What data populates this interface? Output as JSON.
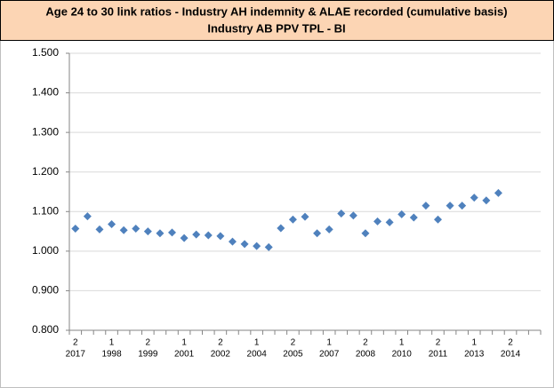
{
  "chart_data": {
    "type": "scatter",
    "title": "Age 24 to 30 link ratios - Industry AH indemnity & ALAE recorded (cumulative basis)",
    "subtitle": "Industry AB PPV TPL - BI",
    "categories": [
      [
        "2",
        "2017"
      ],
      null,
      null,
      [
        "1",
        "1998"
      ],
      null,
      null,
      [
        "2",
        "1999"
      ],
      null,
      null,
      [
        "1",
        "2001"
      ],
      null,
      null,
      [
        "2",
        "2002"
      ],
      null,
      null,
      [
        "1",
        "2004"
      ],
      null,
      null,
      [
        "2",
        "2005"
      ],
      null,
      null,
      [
        "1",
        "2007"
      ],
      null,
      null,
      [
        "2",
        "2008"
      ],
      null,
      null,
      [
        "1",
        "2010"
      ],
      null,
      null,
      [
        "2",
        "2011"
      ],
      null,
      null,
      [
        "1",
        "2013"
      ],
      null,
      null,
      [
        "2",
        "2014"
      ],
      null,
      null
    ],
    "values": [
      1.057,
      1.088,
      1.055,
      1.068,
      1.053,
      1.057,
      1.05,
      1.045,
      1.047,
      1.033,
      1.042,
      1.04,
      1.038,
      1.024,
      1.018,
      1.013,
      1.01,
      1.058,
      1.08,
      1.087,
      1.045,
      1.055,
      1.095,
      1.09,
      1.045,
      1.075,
      1.073,
      1.093,
      1.085,
      1.115,
      1.08,
      1.115,
      1.115,
      1.135,
      1.128,
      1.147,
      null,
      null,
      null
    ],
    "color": "#4f81bd",
    "ylim": [
      0.8,
      1.5
    ],
    "yticks": [
      {
        "value": 0.8,
        "label": "0.800"
      },
      {
        "value": 0.9,
        "label": "0.900"
      },
      {
        "value": 1.0,
        "label": "1.000"
      },
      {
        "value": 1.1,
        "label": "1.100"
      },
      {
        "value": 1.2,
        "label": "1.200"
      },
      {
        "value": 1.3,
        "label": "1.300"
      },
      {
        "value": 1.4,
        "label": "1.400"
      },
      {
        "value": 1.5,
        "label": "1.500"
      }
    ],
    "grid": true
  }
}
